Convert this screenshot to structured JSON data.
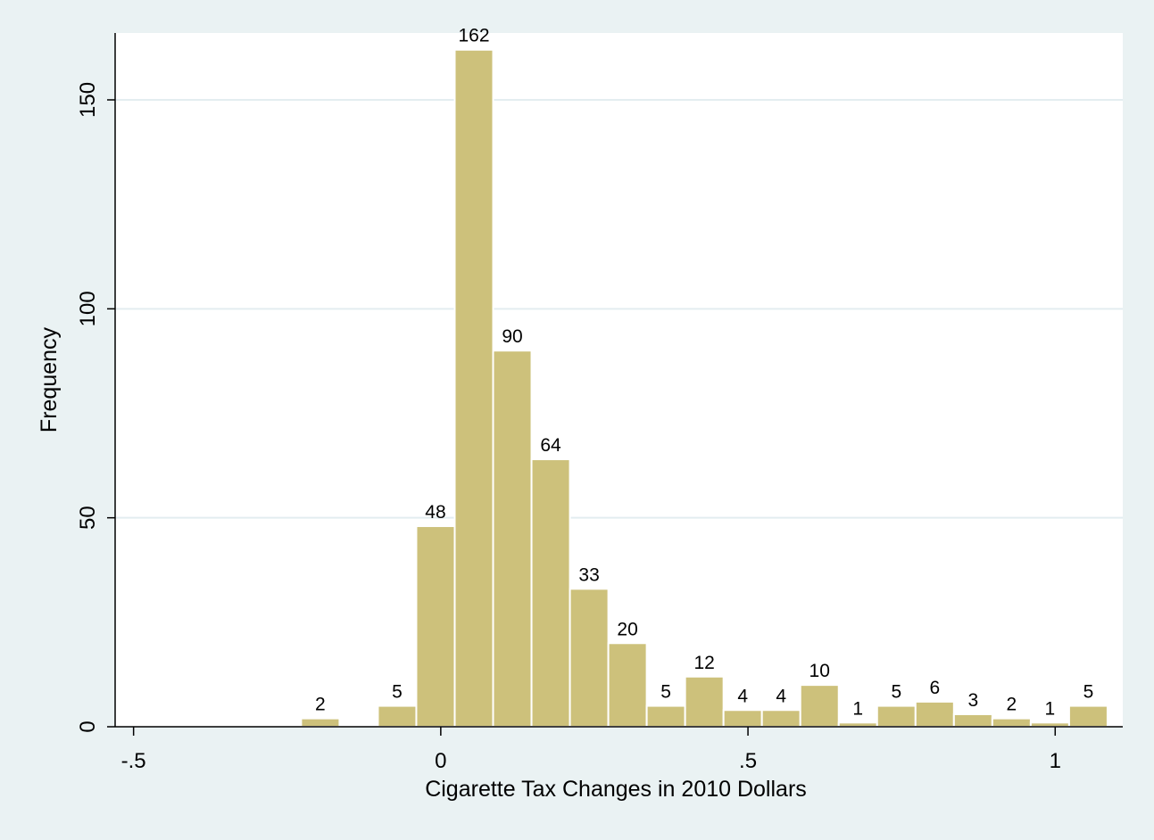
{
  "chart_data": {
    "type": "bar",
    "title": "",
    "xlabel": "Cigarette Tax Changes in 2010 Dollars",
    "ylabel": "Frequency",
    "xlim": [
      -0.53,
      1.11
    ],
    "ylim": [
      0,
      166
    ],
    "x_ticks": [
      -0.5,
      0,
      0.5,
      1
    ],
    "x_tick_labels": [
      "-.5",
      "0",
      ".5",
      "1"
    ],
    "y_ticks": [
      0,
      50,
      100,
      150
    ],
    "y_tick_labels": [
      "0",
      "50",
      "100",
      "150"
    ],
    "grid": "horizontal",
    "legend": "none",
    "bin_width": 0.0625,
    "bins": [
      {
        "start": -0.2273,
        "value": 2,
        "label": "2"
      },
      {
        "start": -0.1023,
        "value": 5,
        "label": "5"
      },
      {
        "start": -0.0398,
        "value": 48,
        "label": "48"
      },
      {
        "start": 0.0227,
        "value": 162,
        "label": "162"
      },
      {
        "start": 0.0852,
        "value": 90,
        "label": "90"
      },
      {
        "start": 0.1477,
        "value": 64,
        "label": "64"
      },
      {
        "start": 0.2102,
        "value": 33,
        "label": "33"
      },
      {
        "start": 0.2727,
        "value": 20,
        "label": "20"
      },
      {
        "start": 0.3352,
        "value": 5,
        "label": "5"
      },
      {
        "start": 0.3977,
        "value": 12,
        "label": "12"
      },
      {
        "start": 0.4602,
        "value": 4,
        "label": "4"
      },
      {
        "start": 0.5227,
        "value": 4,
        "label": "4"
      },
      {
        "start": 0.5852,
        "value": 10,
        "label": "10"
      },
      {
        "start": 0.6477,
        "value": 1,
        "label": "1"
      },
      {
        "start": 0.7102,
        "value": 5,
        "label": "5"
      },
      {
        "start": 0.7727,
        "value": 6,
        "label": "6"
      },
      {
        "start": 0.8352,
        "value": 3,
        "label": "3"
      },
      {
        "start": 0.8977,
        "value": 2,
        "label": "2"
      },
      {
        "start": 0.9602,
        "value": 1,
        "label": "1"
      },
      {
        "start": 1.0227,
        "value": 5,
        "label": "5"
      }
    ],
    "colors": {
      "bar_fill": "#cdc17b",
      "bar_stroke": "#ffffff",
      "plot_background": "#ffffff",
      "outer_background": "#eaf2f3",
      "grid": "#e3edf0",
      "axis": "#000000"
    }
  }
}
